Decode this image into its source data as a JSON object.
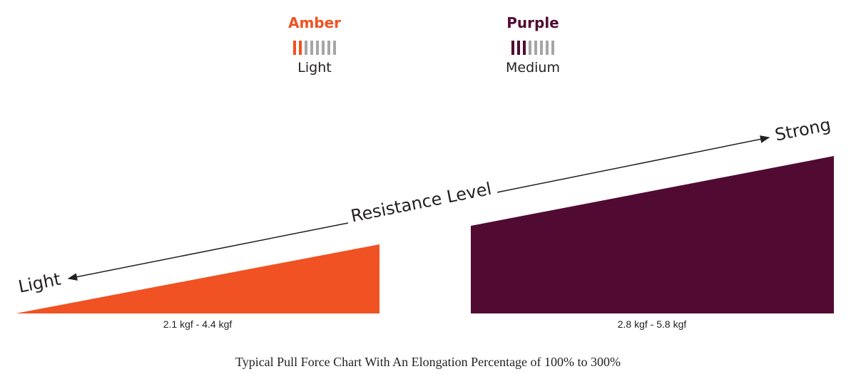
{
  "bands": [
    {
      "name": "Amber",
      "level": "Light",
      "color": "#f05223",
      "filled_bars": 2,
      "total_bars": 8
    },
    {
      "name": "Purple",
      "level": "Medium",
      "color": "#510b33",
      "filled_bars": 3,
      "total_bars": 8
    }
  ],
  "inactive_bar_color": "#a6a6a6",
  "chart_data": {
    "type": "area",
    "axis": {
      "label": "Resistance Level",
      "start_label": "Light",
      "end_label": "Strong"
    },
    "series": [
      {
        "name": "Amber",
        "range_label": "2.1 kgf - 4.4 kgf",
        "min": 2.1,
        "max": 4.4,
        "color": "#f05223"
      },
      {
        "name": "Purple",
        "range_label": "2.8 kgf - 5.8 kgf",
        "min": 2.8,
        "max": 5.8,
        "color": "#510b33"
      }
    ],
    "caption": "Typical Pull Force Chart With An Elongation Percentage of 100% to 300%"
  }
}
